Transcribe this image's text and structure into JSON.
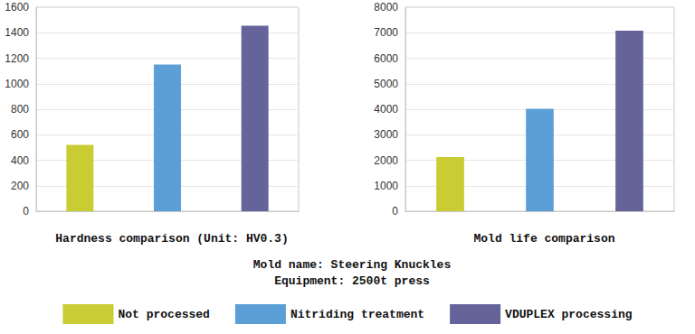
{
  "chart_data": [
    {
      "type": "bar",
      "title": "Hardness comparison (Unit: HV0.3)",
      "categories": [
        "Not processed",
        "Nitriding treatment",
        "VDUPLEX processing"
      ],
      "values": [
        520,
        1150,
        1455
      ],
      "colors": [
        "#c9cc33",
        "#5b9fd6",
        "#64649a"
      ],
      "ylim": [
        0,
        1600
      ],
      "yticks": [
        0,
        200,
        400,
        600,
        800,
        1000,
        1200,
        1400,
        1600
      ],
      "grid": true,
      "tick_labels": "y",
      "legend": "bottom"
    },
    {
      "type": "bar",
      "title": "Mold life comparison",
      "categories": [
        "Not processed",
        "Nitriding treatment",
        "VDUPLEX processing"
      ],
      "values": [
        2120,
        4020,
        7080
      ],
      "colors": [
        "#c9cc33",
        "#5b9fd6",
        "#64649a"
      ],
      "ylim": [
        0,
        8000
      ],
      "yticks": [
        0,
        1000,
        2000,
        3000,
        4000,
        5000,
        6000,
        7000,
        8000
      ],
      "grid": true,
      "tick_labels": "y"
    }
  ],
  "notes": [
    "Mold name: Steering Knuckles",
    "Equipment: 2500t press"
  ]
}
